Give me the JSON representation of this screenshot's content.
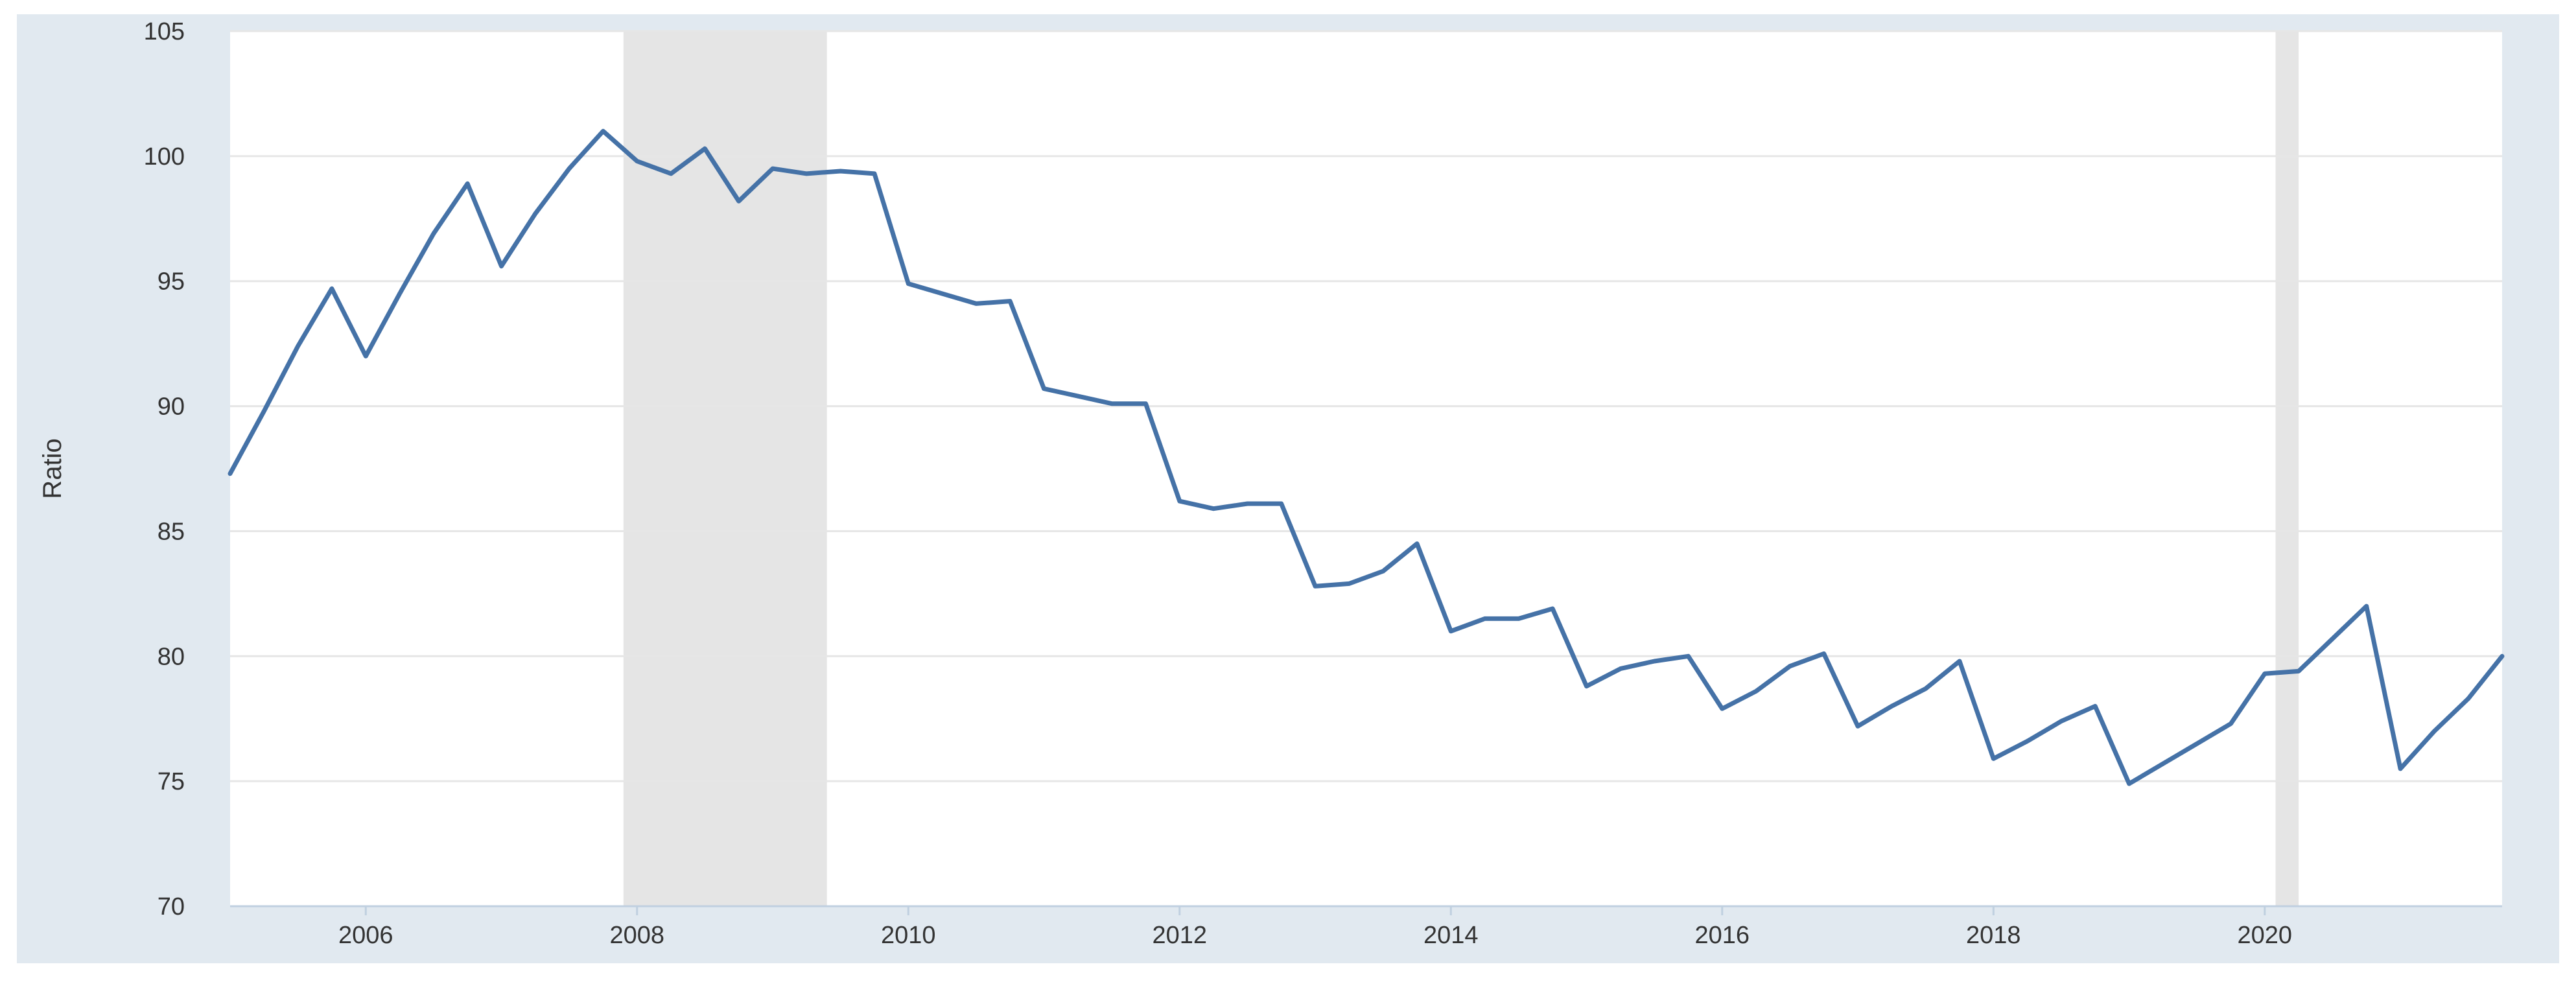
{
  "colors": {
    "frame_background": "#e1e9f0",
    "plot_background": "#ffffff",
    "series_line": "#4572a7",
    "recession_shade": "#e5e5e5",
    "gridline": "#e6e6e6"
  },
  "chart_data": {
    "type": "line",
    "title": "",
    "xlabel": "",
    "ylabel": "Ratio",
    "xlim": [
      2005.0,
      2021.75
    ],
    "ylim": [
      70,
      105
    ],
    "grid": true,
    "legend": "none",
    "y_ticks": [
      {
        "value": 70,
        "label": "70"
      },
      {
        "value": 75,
        "label": "75"
      },
      {
        "value": 80,
        "label": "80"
      },
      {
        "value": 85,
        "label": "85"
      },
      {
        "value": 90,
        "label": "90"
      },
      {
        "value": 95,
        "label": "95"
      },
      {
        "value": 100,
        "label": "100"
      },
      {
        "value": 105,
        "label": "105"
      }
    ],
    "x_ticks": [
      {
        "value": 2006,
        "label": "2006"
      },
      {
        "value": 2008,
        "label": "2008"
      },
      {
        "value": 2010,
        "label": "2010"
      },
      {
        "value": 2012,
        "label": "2012"
      },
      {
        "value": 2014,
        "label": "2014"
      },
      {
        "value": 2016,
        "label": "2016"
      },
      {
        "value": 2018,
        "label": "2018"
      },
      {
        "value": 2020,
        "label": "2020"
      }
    ],
    "recessions": [
      {
        "start": 2007.9,
        "end": 2009.4
      },
      {
        "start": 2020.08,
        "end": 2020.25
      }
    ],
    "series": [
      {
        "x": [
          2005.0,
          2005.25,
          2005.5,
          2005.75,
          2006.0,
          2006.25,
          2006.5,
          2006.75,
          2007.0,
          2007.25,
          2007.5,
          2007.75,
          2008.0,
          2008.25,
          2008.5,
          2008.75,
          2009.0,
          2009.25,
          2009.5,
          2009.75,
          2010.0,
          2010.25,
          2010.5,
          2010.75,
          2011.0,
          2011.25,
          2011.5,
          2011.75,
          2012.0,
          2012.25,
          2012.5,
          2012.75,
          2013.0,
          2013.25,
          2013.5,
          2013.75,
          2014.0,
          2014.25,
          2014.5,
          2014.75,
          2015.0,
          2015.25,
          2015.5,
          2015.75,
          2016.0,
          2016.25,
          2016.5,
          2016.75,
          2017.0,
          2017.25,
          2017.5,
          2017.75,
          2018.0,
          2018.25,
          2018.5,
          2018.75,
          2019.0,
          2019.25,
          2019.5,
          2019.75,
          2020.0,
          2020.25,
          2020.5,
          2020.75,
          2021.0,
          2021.25,
          2021.5,
          2021.75
        ],
        "values": [
          87.3,
          89.8,
          92.4,
          94.7,
          92.0,
          94.5,
          96.9,
          98.9,
          95.6,
          97.7,
          99.5,
          101.0,
          99.8,
          99.3,
          100.3,
          98.2,
          99.5,
          99.3,
          99.4,
          99.3,
          94.9,
          94.5,
          94.1,
          94.2,
          90.7,
          90.4,
          90.1,
          90.1,
          86.2,
          85.9,
          86.1,
          86.1,
          82.8,
          82.9,
          83.4,
          84.5,
          81.0,
          81.5,
          81.5,
          81.9,
          78.8,
          79.5,
          79.8,
          80.0,
          77.9,
          78.6,
          79.6,
          80.1,
          77.2,
          78.0,
          78.7,
          79.8,
          75.9,
          76.6,
          77.4,
          78.0,
          74.9,
          75.7,
          76.5,
          77.3,
          79.3,
          79.4,
          80.7,
          82.0,
          75.5,
          77.0,
          78.3,
          80.0
        ]
      }
    ]
  }
}
